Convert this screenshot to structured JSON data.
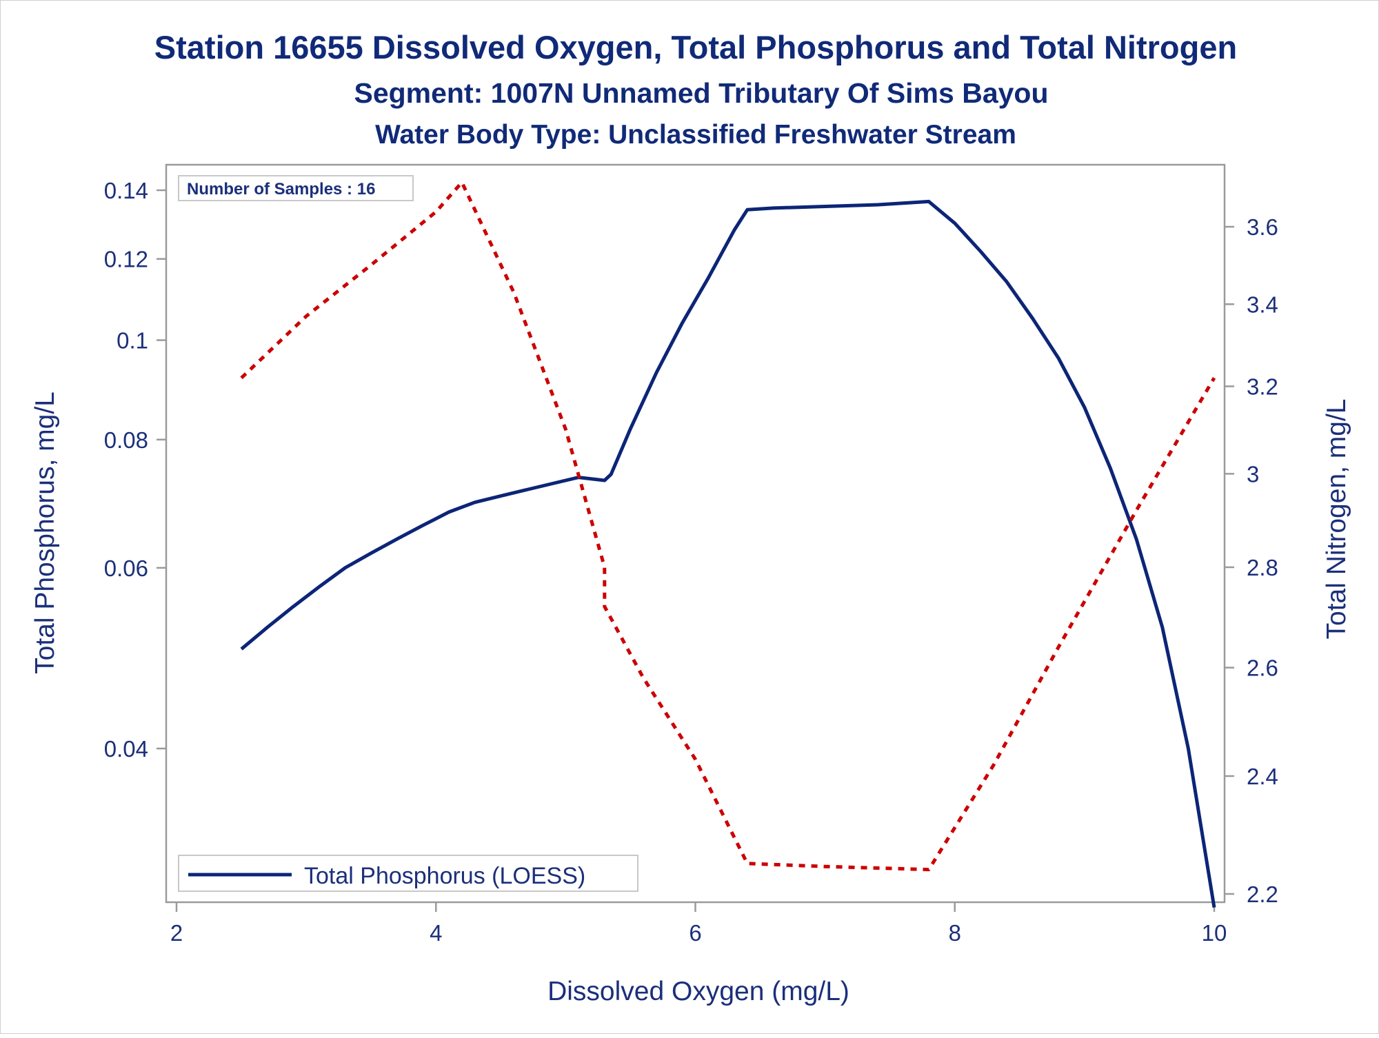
{
  "chart_data": {
    "type": "line",
    "title": "Station 16655  Dissolved Oxygen, Total Phosphorus and Total Nitrogen",
    "subtitle": "Segment: 1007N  Unnamed Tributary Of Sims Bayou",
    "subtitle2": "Water Body Type: Unclassified Freshwater Stream",
    "xlabel": "Dissolved Oxygen (mg/L)",
    "ylabel_left": "Total Phosphorus, mg/L",
    "ylabel_right": "Total Nitrogen, mg/L",
    "inset_text": "Number of Samples : 16",
    "legend": [
      "Total Phosphorus (LOESS)"
    ],
    "legend_placement": "bottom-left",
    "xlim": [
      2,
      10.2
    ],
    "x_ticks": [
      "2",
      "4",
      "6",
      "8",
      "10"
    ],
    "y_left_scale": "log",
    "y_left_ticks": [
      "0.04",
      "0.06",
      "0.08",
      "0.1",
      "0.12",
      "0.14"
    ],
    "y_right_ticks": [
      "2.2",
      "2.4",
      "2.6",
      "2.8",
      "3",
      "3.2",
      "3.4",
      "3.6"
    ],
    "grid": false,
    "series": [
      {
        "name": "Total Phosphorus (LOESS)",
        "axis": "left",
        "style": "solid",
        "color": "#0c2577",
        "points": [
          [
            2.5,
            0.05
          ],
          [
            2.7,
            0.0525
          ],
          [
            2.9,
            0.055
          ],
          [
            3.1,
            0.0575
          ],
          [
            3.3,
            0.06
          ],
          [
            3.5,
            0.062
          ],
          [
            3.7,
            0.064
          ],
          [
            3.9,
            0.066
          ],
          [
            4.1,
            0.068
          ],
          [
            4.3,
            0.0695
          ],
          [
            4.5,
            0.0705
          ],
          [
            4.7,
            0.0715
          ],
          [
            4.9,
            0.0725
          ],
          [
            5.1,
            0.0735
          ],
          [
            5.3,
            0.073
          ],
          [
            5.35,
            0.074
          ],
          [
            5.5,
            0.082
          ],
          [
            5.7,
            0.093
          ],
          [
            5.9,
            0.104
          ],
          [
            6.1,
            0.115
          ],
          [
            6.3,
            0.128
          ],
          [
            6.4,
            0.134
          ],
          [
            6.6,
            0.1345
          ],
          [
            7.0,
            0.135
          ],
          [
            7.4,
            0.1355
          ],
          [
            7.8,
            0.1365
          ],
          [
            8.0,
            0.13
          ],
          [
            8.2,
            0.122
          ],
          [
            8.4,
            0.114
          ],
          [
            8.6,
            0.105
          ],
          [
            8.8,
            0.096
          ],
          [
            9.0,
            0.086
          ],
          [
            9.2,
            0.075
          ],
          [
            9.4,
            0.064
          ],
          [
            9.6,
            0.0525
          ],
          [
            9.8,
            0.04
          ],
          [
            10.0,
            0.028
          ]
        ]
      },
      {
        "name": "",
        "axis": "right",
        "style": "dashed",
        "color": "#cc0000",
        "points": [
          [
            2.5,
            3.22
          ],
          [
            3.0,
            3.37
          ],
          [
            3.5,
            3.5
          ],
          [
            4.0,
            3.64
          ],
          [
            4.2,
            3.72
          ],
          [
            4.6,
            3.43
          ],
          [
            5.0,
            3.1
          ],
          [
            5.3,
            2.8
          ],
          [
            5.3,
            2.72
          ],
          [
            5.6,
            2.58
          ],
          [
            6.0,
            2.43
          ],
          [
            6.4,
            2.25
          ],
          [
            7.0,
            2.245
          ],
          [
            7.8,
            2.24
          ],
          [
            8.3,
            2.42
          ],
          [
            8.8,
            2.64
          ],
          [
            9.4,
            2.92
          ],
          [
            10.0,
            3.22
          ]
        ]
      }
    ]
  }
}
